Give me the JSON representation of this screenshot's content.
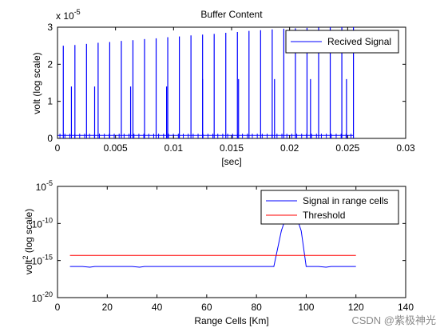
{
  "watermark": "CSDN @紫极神光",
  "chart_data": [
    {
      "type": "line",
      "title": "Buffer Content",
      "xlabel": "[sec]",
      "ylabel": "volt (log scale)",
      "y_exponent_label": "x 10",
      "y_exponent": "-5",
      "xlim": [
        0,
        0.03
      ],
      "ylim": [
        0,
        3
      ],
      "xticks": [
        "0",
        "0.005",
        "0.01",
        "0.015",
        "0.02",
        "0.025",
        "0.03"
      ],
      "yticks": [
        "0",
        "1",
        "2",
        "3"
      ],
      "legend": {
        "location": "top-right"
      },
      "grid": false,
      "series": [
        {
          "name": "Recived Signal",
          "color": "#0000ff",
          "peaks": {
            "x": [
              0.0005,
              0.0015,
              0.0025,
              0.0035,
              0.0045,
              0.0055,
              0.0065,
              0.0075,
              0.0085,
              0.0095,
              0.0105,
              0.0115,
              0.0125,
              0.0135,
              0.0145,
              0.0155,
              0.0165,
              0.0175,
              0.0185,
              0.0195,
              0.0205,
              0.0215,
              0.0225,
              0.0235,
              0.0245,
              0.0255
            ],
            "y": [
              2.5,
              2.52,
              2.55,
              2.58,
              2.6,
              2.63,
              2.65,
              2.68,
              2.7,
              2.73,
              2.75,
              2.78,
              2.8,
              2.82,
              2.85,
              2.87,
              2.9,
              2.92,
              2.94,
              2.96,
              2.97,
              2.98,
              2.99,
              3.0,
              3.0,
              3.0
            ]
          },
          "echoes": {
            "x": [
              0.0012,
              0.0032,
              0.0063,
              0.0094,
              0.0125,
              0.0156,
              0.0187,
              0.0218,
              0.0249
            ],
            "y": [
              1.4,
              1.4,
              1.4,
              1.4,
              1.6,
              1.6,
              1.6,
              1.6,
              1.6
            ]
          },
          "baseline": 0.08,
          "x_end": 0.0255
        }
      ]
    },
    {
      "type": "line",
      "xlabel": "Range Cells [Km]",
      "ylabel": "volt",
      "ylabel_sup": "2",
      "ylabel_suffix": " (log scale)",
      "xlim": [
        0,
        140
      ],
      "ylim_log10": [
        -20,
        -5
      ],
      "xticks": [
        "0",
        "20",
        "40",
        "60",
        "80",
        "100",
        "120",
        "140"
      ],
      "ytick_base": "10",
      "ytick_exponents": [
        "-20",
        "-15",
        "-10",
        "-5"
      ],
      "legend": {
        "location": "top-right"
      },
      "grid": false,
      "series": [
        {
          "name": "Signal in range cells",
          "color": "#0000ff",
          "x": [
            5,
            10,
            13,
            15,
            20,
            25,
            30,
            33,
            35,
            40,
            45,
            50,
            55,
            60,
            65,
            70,
            75,
            80,
            85,
            87,
            90,
            93,
            95,
            98,
            100,
            105,
            108,
            110,
            115,
            120
          ],
          "log10_y": [
            -15.8,
            -15.8,
            -15.9,
            -15.8,
            -15.8,
            -15.8,
            -15.8,
            -15.9,
            -15.8,
            -15.8,
            -15.8,
            -15.8,
            -15.8,
            -15.8,
            -15.8,
            -15.8,
            -15.8,
            -15.8,
            -15.8,
            -15.8,
            -11.0,
            -8.0,
            -8.0,
            -11.0,
            -15.8,
            -15.8,
            -15.9,
            -15.8,
            -15.8,
            -15.8
          ]
        },
        {
          "name": "Threshold",
          "color": "#ff0000",
          "x": [
            5,
            120
          ],
          "log10_y": [
            -14.3,
            -14.3
          ]
        }
      ]
    }
  ]
}
